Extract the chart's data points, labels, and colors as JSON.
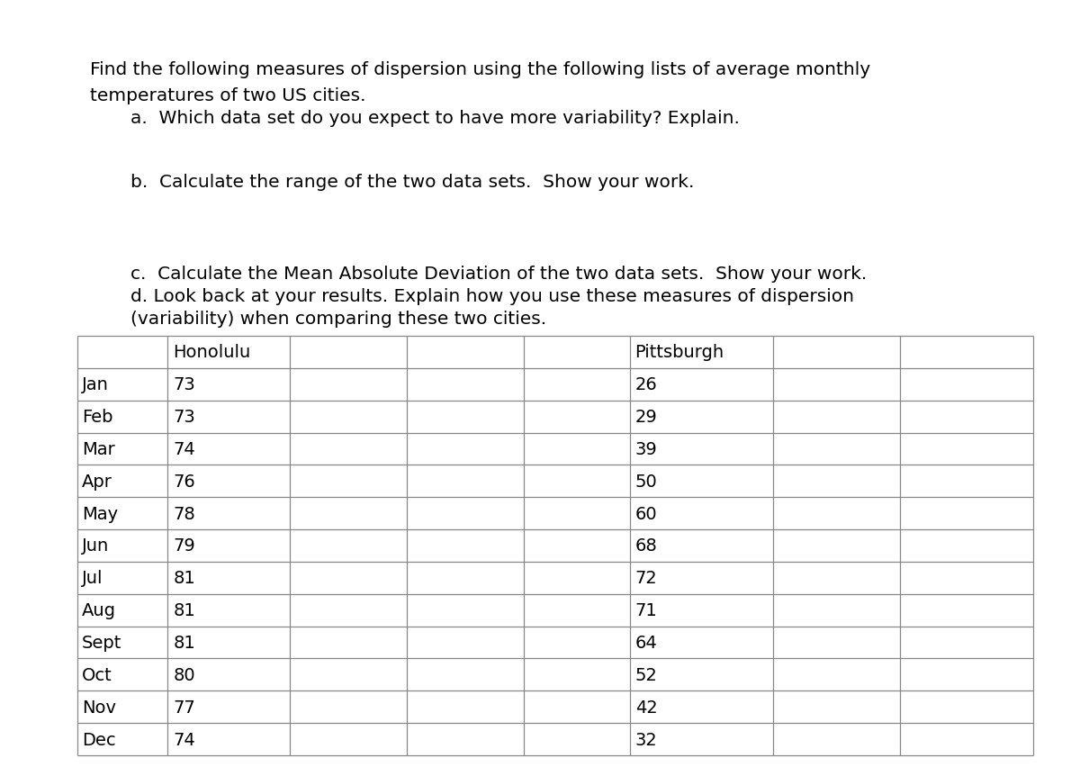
{
  "title_line1": "Find the following measures of dispersion using the following lists of average monthly",
  "title_line2": "temperatures of two US cities.",
  "question_a": "a.  Which data set do you expect to have more variability? Explain.",
  "question_b": "b.  Calculate the range of the two data sets.  Show your work.",
  "question_c": "c.  Calculate the Mean Absolute Deviation of the two data sets.  Show your work.",
  "question_d1": "d. Look back at your results. Explain how you use these measures of dispersion",
  "question_d2": "(variability) when comparing these two cities.",
  "months": [
    "Jan",
    "Feb",
    "Mar",
    "Apr",
    "May",
    "Jun",
    "Jul",
    "Aug",
    "Sept",
    "Oct",
    "Nov",
    "Dec"
  ],
  "honolulu": [
    73,
    73,
    74,
    76,
    78,
    79,
    81,
    81,
    81,
    80,
    77,
    74
  ],
  "pittsburgh": [
    26,
    29,
    39,
    50,
    60,
    68,
    72,
    71,
    64,
    52,
    42,
    32
  ],
  "bg_color": "#ffffff",
  "text_color": "#000000",
  "grid_color": "#888888",
  "font_size_text": 14.5,
  "font_size_table": 14,
  "fig_width": 12.0,
  "fig_height": 8.53,
  "dpi": 100
}
